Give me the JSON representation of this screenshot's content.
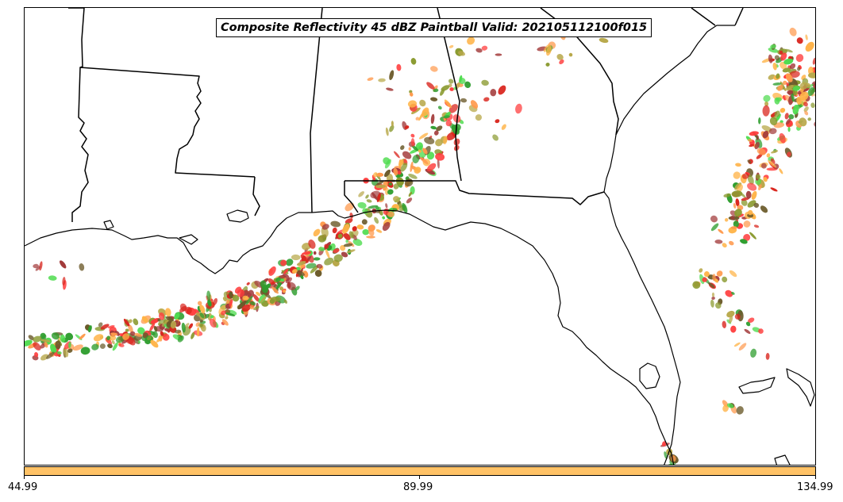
{
  "title": "Composite Reflectivity 45 dBZ Paintball Valid: 202105112100f015",
  "colorbar": {
    "color": "#ffc266",
    "ticks": [
      "44.99",
      "89.99",
      "134.99"
    ]
  },
  "paintball_colors": [
    "#ff3b3b",
    "#d9241c",
    "#ff9a4d",
    "#ffb347",
    "#4fdc4f",
    "#2f9e2f",
    "#8a9a2f",
    "#6b5a2a",
    "#b8a84a",
    "#a23a3a"
  ]
}
